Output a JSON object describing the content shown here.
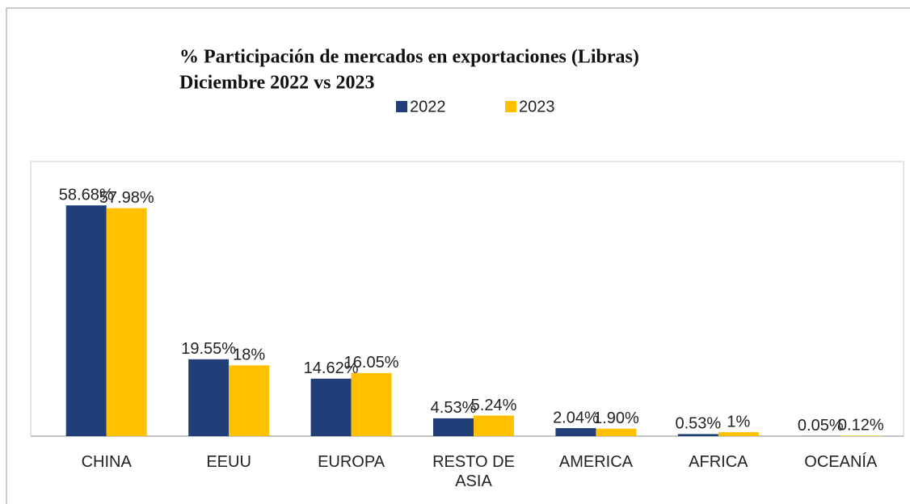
{
  "chart_data": {
    "type": "bar",
    "title": "% Participación de mercados en exportaciones (Libras)",
    "subtitle": "Diciembre 2022 vs 2023",
    "categories": [
      "CHINA",
      "EEUU",
      "EUROPA",
      "RESTO DE ASIA",
      "AMERICA",
      "AFRICA",
      "OCEANÍA"
    ],
    "series": [
      {
        "name": "2022",
        "color": "#203f78",
        "values": [
          58.68,
          19.55,
          14.62,
          4.53,
          2.04,
          0.53,
          0.05
        ],
        "value_labels": [
          "58.68%",
          "19.55%",
          "14.62%",
          "4.53%",
          "2.04%",
          "0.53%",
          "0.05%"
        ]
      },
      {
        "name": "2023",
        "color": "#ffc000",
        "values": [
          57.98,
          18,
          16.05,
          5.24,
          1.9,
          1,
          0.12
        ],
        "value_labels": [
          "57.98%",
          "18%",
          "16.05%",
          "5.24%",
          "1.90%",
          "1%",
          "0.12%"
        ]
      }
    ]
  }
}
